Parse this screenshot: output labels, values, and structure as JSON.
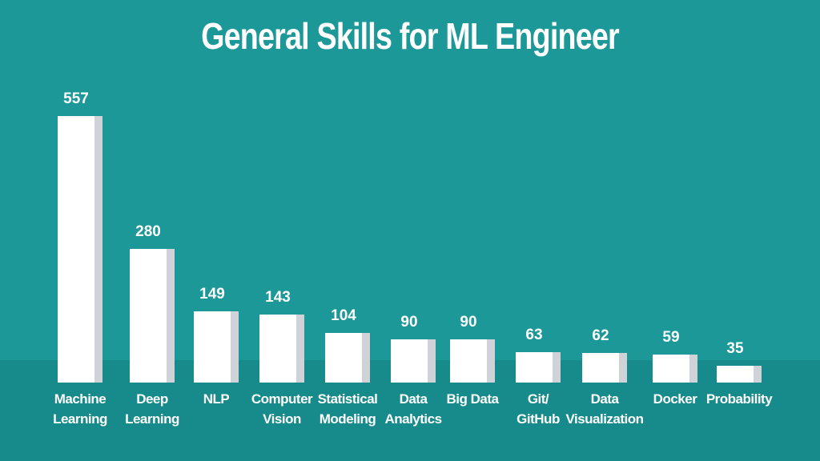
{
  "chart_data": {
    "type": "bar",
    "title": "General Skills for ML Engineer",
    "categories": [
      "Machine\nLearning",
      "Deep\nLearning",
      "NLP",
      "Computer\nVision",
      "Statistical\nModeling",
      "Data\nAnalytics",
      "Big Data",
      "Git/\nGitHub",
      "Data\nVisualization",
      "Docker",
      "Probability"
    ],
    "values": [
      557,
      280,
      149,
      143,
      104,
      90,
      90,
      63,
      62,
      59,
      35
    ],
    "color": "#ffffff"
  }
}
